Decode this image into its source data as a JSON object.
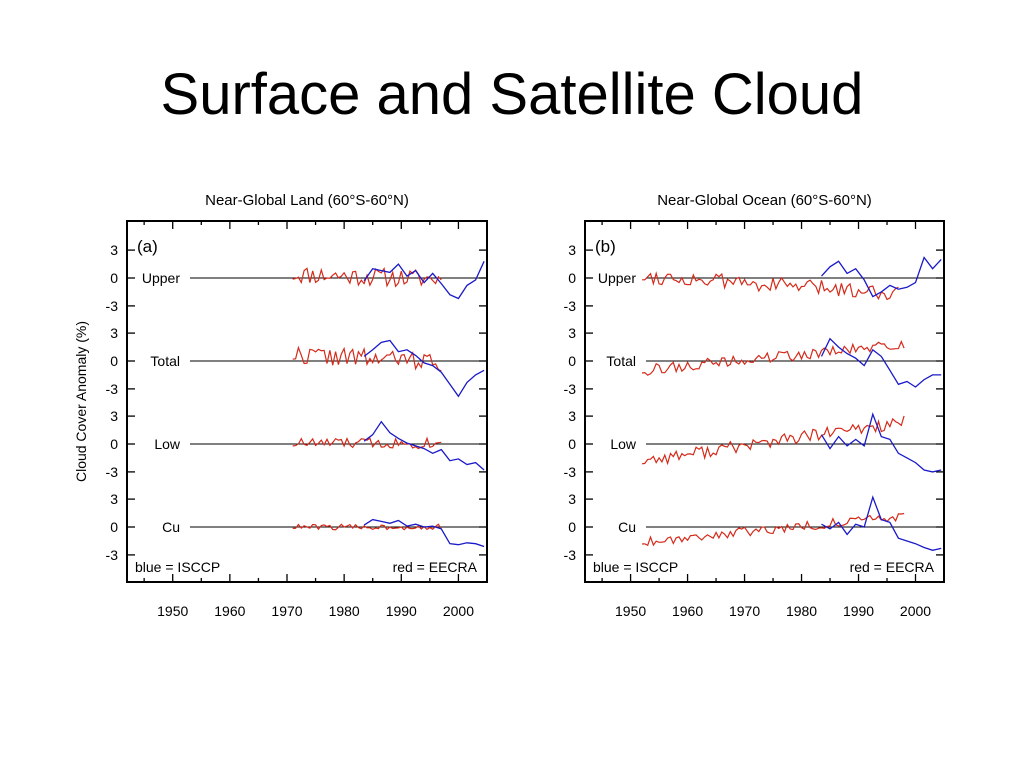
{
  "slide": {
    "title": "Surface and Satellite Cloud"
  },
  "chart_data": [
    {
      "type": "line",
      "panel_label": "(a)",
      "title": "Near-Global Land (60°S-60°N)",
      "xlabel": "",
      "ylabel": "Cloud Cover Anomaly (%)",
      "xlim": [
        1942,
        2005
      ],
      "x_ticks": [
        1950,
        1960,
        1970,
        1980,
        1990,
        2000
      ],
      "y_tick_labels": [
        "3",
        "0",
        "-3"
      ],
      "legend": {
        "blue": "blue = ISCCP",
        "red": "red = EECRA"
      },
      "colors": {
        "isccp": "#1a1ac8",
        "eecra": "#d42a1a"
      },
      "groups": [
        {
          "label": "Upper",
          "eecra": {
            "start": 1971,
            "end": 1997,
            "mean": 0.4,
            "amp": 1.0,
            "slope": -0.02,
            "seed": 11
          },
          "isccp": {
            "x": [
              1983.5,
              1985,
              1986.5,
              1988,
              1989.5,
              1991,
              1992.5,
              1994,
              1995.5,
              1997,
              1998.5,
              2000,
              2001.5,
              2003,
              2004.5
            ],
            "y": [
              -0.3,
              1.0,
              0.8,
              0.6,
              1.5,
              0.2,
              0.8,
              -0.5,
              0.5,
              -0.6,
              -1.8,
              -2.2,
              -0.8,
              -0.2,
              1.8
            ]
          }
        },
        {
          "label": "Total",
          "eecra": {
            "start": 1971,
            "end": 1997,
            "mean": 0.7,
            "amp": 1.0,
            "slope": -0.03,
            "seed": 22
          },
          "isccp": {
            "x": [
              1983.5,
              1985,
              1986.5,
              1988,
              1989.5,
              1991,
              1992.5,
              1994,
              1995.5,
              1997,
              1998.5,
              2000,
              2001.5,
              2003,
              2004.5
            ],
            "y": [
              0.5,
              1.2,
              2.0,
              2.2,
              1.0,
              1.2,
              0.6,
              -0.2,
              -0.5,
              -1.2,
              -2.5,
              -3.8,
              -2.3,
              -1.5,
              -1.0
            ]
          }
        },
        {
          "label": "Low",
          "eecra": {
            "start": 1971,
            "end": 1997,
            "mean": 0.1,
            "amp": 0.6,
            "slope": 0.0,
            "seed": 33
          },
          "isccp": {
            "x": [
              1983.5,
              1985,
              1986.5,
              1988,
              1989.5,
              1991,
              1992.5,
              1994,
              1995.5,
              1997,
              1998.5,
              2000,
              2001.5,
              2003,
              2004.5
            ],
            "y": [
              0.3,
              1.0,
              2.4,
              1.2,
              0.6,
              0.1,
              -0.2,
              -0.5,
              -1.0,
              -0.6,
              -1.8,
              -1.6,
              -2.2,
              -2.0,
              -2.8
            ]
          }
        },
        {
          "label": "Cu",
          "eecra": {
            "start": 1971,
            "end": 1997,
            "mean": 0.0,
            "amp": 0.3,
            "slope": 0.0,
            "seed": 44
          },
          "isccp": {
            "x": [
              1983.5,
              1985,
              1986.5,
              1988,
              1989.5,
              1991,
              1992.5,
              1994,
              1995.5,
              1997,
              1998.5,
              2000,
              2001.5,
              2003,
              2004.5
            ],
            "y": [
              0.2,
              0.8,
              0.6,
              0.4,
              0.7,
              0.1,
              0.3,
              0.0,
              0.1,
              -0.2,
              -1.8,
              -1.9,
              -1.7,
              -1.8,
              -2.1
            ]
          }
        }
      ]
    },
    {
      "type": "line",
      "panel_label": "(b)",
      "title": "Near-Global Ocean (60°S-60°N)",
      "xlabel": "",
      "ylabel": "",
      "xlim": [
        1942,
        2005
      ],
      "x_ticks": [
        1950,
        1960,
        1970,
        1980,
        1990,
        2000
      ],
      "y_tick_labels": [
        "3",
        "0",
        "-3"
      ],
      "legend": {
        "blue": "blue = ISCCP",
        "red": "red = EECRA"
      },
      "colors": {
        "isccp": "#1a1ac8",
        "eecra": "#d42a1a"
      },
      "groups": [
        {
          "label": "Upper",
          "eecra": {
            "start": 1952,
            "end": 1997,
            "mean": 0.2,
            "amp": 0.8,
            "slope": -0.04,
            "seed": 55
          },
          "isccp": {
            "x": [
              1983.5,
              1985,
              1986.5,
              1988,
              1989.5,
              1991,
              1992.5,
              1994,
              1995.5,
              1997,
              1998.5,
              2000,
              2001.5,
              2003,
              2004.5
            ],
            "y": [
              0.2,
              1.2,
              1.8,
              0.5,
              1.0,
              -0.2,
              -2.0,
              -1.5,
              -0.8,
              -1.2,
              -1.0,
              -0.5,
              2.2,
              1.0,
              2.0
            ]
          }
        },
        {
          "label": "Total",
          "eecra": {
            "start": 1952,
            "end": 1998,
            "mean": -1.0,
            "amp": 0.6,
            "slope": 0.06,
            "seed": 66
          },
          "isccp": {
            "x": [
              1983.5,
              1985,
              1986.5,
              1988,
              1989.5,
              1991,
              1992.5,
              1994,
              1995.5,
              1997,
              1998.5,
              2000,
              2001.5,
              2003,
              2004.5
            ],
            "y": [
              0.5,
              2.4,
              1.5,
              0.8,
              0.3,
              -0.5,
              1.2,
              0.5,
              -1.0,
              -2.5,
              -2.2,
              -2.8,
              -2.0,
              -1.5,
              -1.5
            ]
          }
        },
        {
          "label": "Low",
          "eecra": {
            "start": 1952,
            "end": 1998,
            "mean": -1.8,
            "amp": 0.7,
            "slope": 0.09,
            "seed": 77
          },
          "isccp": {
            "x": [
              1983.5,
              1985,
              1986.5,
              1988,
              1989.5,
              1991,
              1992.5,
              1994,
              1995.5,
              1997,
              1998.5,
              2000,
              2001.5,
              2003,
              2004.5
            ],
            "y": [
              1.0,
              -0.5,
              0.8,
              -0.2,
              0.5,
              -0.2,
              3.2,
              0.8,
              0.5,
              -1.0,
              -1.5,
              -2.0,
              -2.8,
              -3.0,
              -2.8
            ]
          }
        },
        {
          "label": "Cu",
          "eecra": {
            "start": 1952,
            "end": 1998,
            "mean": -1.6,
            "amp": 0.5,
            "slope": 0.06,
            "seed": 88
          },
          "isccp": {
            "x": [
              1983.5,
              1985,
              1986.5,
              1988,
              1989.5,
              1991,
              1992.5,
              1994,
              1995.5,
              1997,
              1998.5,
              2000,
              2001.5,
              2003,
              2004.5
            ],
            "y": [
              0.3,
              -0.2,
              0.5,
              -0.8,
              0.3,
              0.0,
              3.2,
              0.8,
              0.5,
              -1.2,
              -1.5,
              -1.8,
              -2.2,
              -2.5,
              -2.3
            ]
          }
        }
      ]
    }
  ]
}
